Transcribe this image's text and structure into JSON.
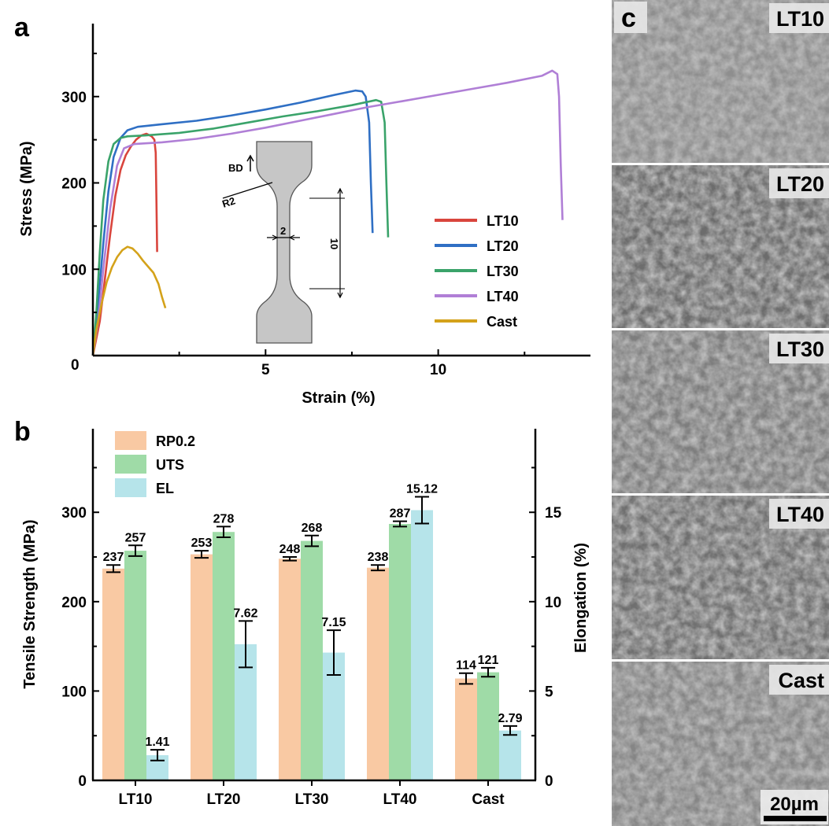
{
  "panels": {
    "a": "a",
    "b": "b",
    "c": "c"
  },
  "chart_data": [
    {
      "type": "line",
      "panel": "a",
      "xlabel": "Strain (%)",
      "ylabel": "Stress (MPa)",
      "xlim": [
        0,
        14.5
      ],
      "ylim": [
        0,
        390
      ],
      "xticks": [
        5,
        10
      ],
      "yticks": [
        100,
        200,
        300
      ],
      "origin_label": "0",
      "legend_position": "center-right",
      "series": [
        {
          "name": "LT10",
          "color": "#d9453d",
          "x": [
            0,
            0.2,
            0.35,
            0.5,
            0.65,
            0.8,
            0.95,
            1.1,
            1.25,
            1.4,
            1.55,
            1.7,
            1.78,
            1.82,
            1.84,
            1.86
          ],
          "y": [
            0,
            40,
            90,
            140,
            185,
            215,
            232,
            242,
            250,
            255,
            257,
            254,
            250,
            235,
            180,
            120
          ]
        },
        {
          "name": "LT20",
          "color": "#2f6fc4",
          "x": [
            0,
            0.15,
            0.3,
            0.45,
            0.6,
            0.8,
            1.0,
            1.3,
            2.0,
            3.0,
            4.0,
            5.0,
            6.0,
            7.0,
            7.6,
            7.8,
            7.9,
            8.0,
            8.05,
            8.1
          ],
          "y": [
            0,
            60,
            130,
            190,
            230,
            252,
            261,
            265,
            268,
            272,
            278,
            285,
            293,
            302,
            307,
            306,
            300,
            270,
            200,
            142
          ]
        },
        {
          "name": "LT30",
          "color": "#3aa36a",
          "x": [
            0,
            0.1,
            0.2,
            0.3,
            0.45,
            0.6,
            0.8,
            1.0,
            1.5,
            2.5,
            3.5,
            4.5,
            5.5,
            6.5,
            7.5,
            8.2,
            8.35,
            8.45,
            8.5,
            8.55
          ],
          "y": [
            0,
            50,
            120,
            180,
            225,
            245,
            252,
            254,
            255,
            258,
            263,
            270,
            277,
            283,
            290,
            296,
            294,
            270,
            200,
            137
          ]
        },
        {
          "name": "LT40",
          "color": "#b07fd6",
          "x": [
            0,
            0.15,
            0.3,
            0.5,
            0.7,
            0.9,
            1.2,
            2.0,
            3.0,
            4.0,
            5.0,
            6.0,
            7.0,
            8.0,
            9.0,
            10.0,
            11.0,
            12.0,
            13.0,
            13.3,
            13.45,
            13.5,
            13.55,
            13.6
          ],
          "y": [
            0,
            40,
            100,
            170,
            220,
            240,
            245,
            247,
            251,
            257,
            264,
            272,
            280,
            288,
            295,
            302,
            309,
            316,
            324,
            330,
            326,
            300,
            220,
            157
          ]
        },
        {
          "name": "Cast",
          "color": "#d4a21a",
          "x": [
            0,
            0.1,
            0.25,
            0.4,
            0.55,
            0.7,
            0.85,
            1.0,
            1.15,
            1.3,
            1.45,
            1.6,
            1.75,
            1.9,
            2.0,
            2.1
          ],
          "y": [
            0,
            30,
            60,
            85,
            102,
            114,
            122,
            126,
            124,
            118,
            110,
            103,
            96,
            83,
            68,
            55
          ]
        }
      ],
      "inset": {
        "dimensions": [
          "BD",
          "R2",
          "2",
          "10"
        ]
      }
    },
    {
      "type": "bar",
      "panel": "b",
      "categories": [
        "LT10",
        "LT20",
        "LT30",
        "LT40",
        "Cast"
      ],
      "ylabel": "Tensile Strength (MPa)",
      "ylabel_right": "Elongation (%)",
      "ylim": [
        0,
        390
      ],
      "ylim_right": [
        0,
        19.5
      ],
      "yticks": [
        0,
        100,
        200,
        300
      ],
      "yticks_right": [
        0,
        5,
        10,
        15
      ],
      "legend_position": "top-left",
      "series": [
        {
          "name": "RP0.2",
          "axis": "left",
          "color": "#f9c9a3",
          "values": [
            237,
            253,
            248,
            238,
            114
          ],
          "errors": [
            4,
            4,
            2,
            3,
            6
          ],
          "labels": [
            "237",
            "253",
            "248",
            "238",
            "114"
          ]
        },
        {
          "name": "UTS",
          "axis": "left",
          "color": "#9fdba7",
          "values": [
            257,
            278,
            268,
            287,
            121
          ],
          "errors": [
            6,
            6,
            6,
            3,
            5
          ],
          "labels": [
            "257",
            "278",
            "268",
            "287",
            "121"
          ]
        },
        {
          "name": "EL",
          "axis": "right",
          "color": "#b6e4ea",
          "values": [
            1.41,
            7.62,
            7.15,
            15.12,
            2.79
          ],
          "errors": [
            0.3,
            1.3,
            1.25,
            0.75,
            0.25
          ],
          "labels": [
            "1.41",
            "7.62",
            "7.15",
            "15.12",
            "2.79"
          ]
        }
      ]
    }
  ],
  "micrographs": {
    "labels": [
      "LT10",
      "LT20",
      "LT30",
      "LT40",
      "Cast"
    ],
    "scale_bar": "20µm"
  }
}
